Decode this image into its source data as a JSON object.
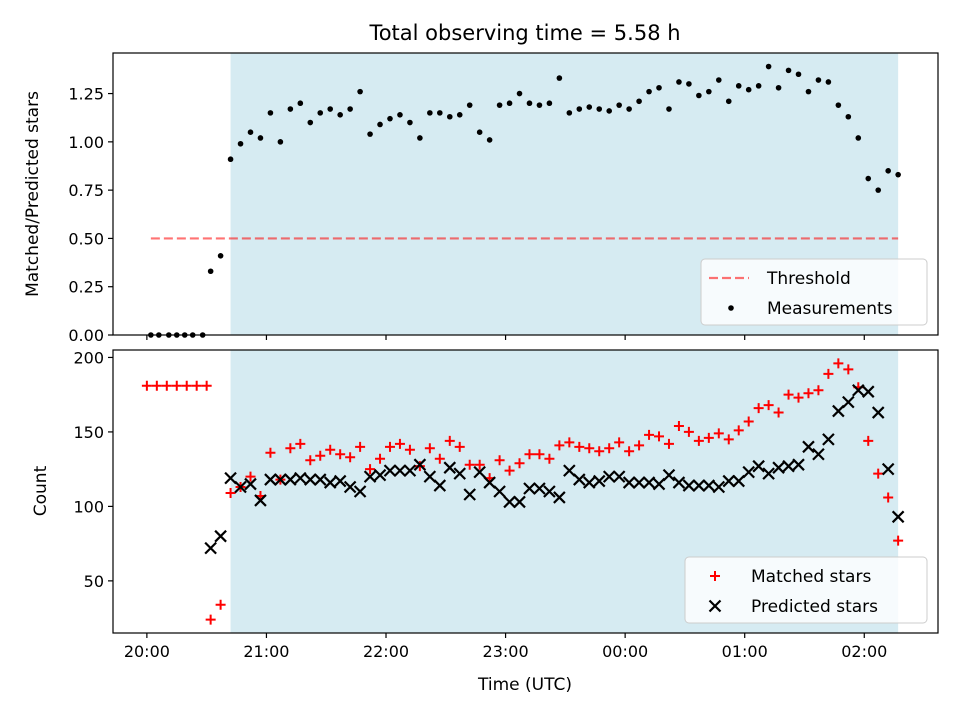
{
  "title": "Total observing time = 5.58 h",
  "colors": {
    "shade": "#add8e6",
    "threshold": "#ff0000",
    "measurements": "#000000",
    "matched": "#ff0000",
    "predicted": "#000000"
  },
  "chart_data": [
    {
      "type": "scatter",
      "title": "Total observing time = 5.58 h",
      "ylabel": "Matched/Predicted stars",
      "xlabel": "",
      "xlim": [
        "19:43",
        "02:37"
      ],
      "ylim": [
        0,
        1.46
      ],
      "x_ticks": [
        "20:00",
        "21:00",
        "22:00",
        "23:00",
        "00:00",
        "01:00",
        "02:00"
      ],
      "y_ticks": [
        "0.00",
        "0.25",
        "0.50",
        "0.75",
        "1.00",
        "1.25"
      ],
      "y_tick_values": [
        0,
        0.25,
        0.5,
        0.75,
        1.0,
        1.25
      ],
      "shaded_span": [
        "20:42",
        "02:17"
      ],
      "threshold": {
        "name": "Threshold",
        "y": 0.5,
        "x_range": [
          "20:02",
          "02:17"
        ],
        "style": "dashed"
      },
      "legend": [
        "Threshold",
        "Measurements"
      ],
      "legend_position": "lower right",
      "series": [
        {
          "name": "Measurements",
          "marker": "dot",
          "points": [
            [
              "20:02",
              0.0
            ],
            [
              "20:06",
              0.0
            ],
            [
              "20:11",
              0.0
            ],
            [
              "20:15",
              0.0
            ],
            [
              "20:19",
              0.0
            ],
            [
              "20:23",
              0.0
            ],
            [
              "20:28",
              0.0
            ],
            [
              "20:32",
              0.33
            ],
            [
              "20:37",
              0.41
            ],
            [
              "20:42",
              0.91
            ],
            [
              "20:47",
              0.99
            ],
            [
              "20:52",
              1.05
            ],
            [
              "20:57",
              1.02
            ],
            [
              "21:02",
              1.15
            ],
            [
              "21:07",
              1.0
            ],
            [
              "21:12",
              1.17
            ],
            [
              "21:17",
              1.2
            ],
            [
              "21:22",
              1.1
            ],
            [
              "21:27",
              1.15
            ],
            [
              "21:32",
              1.17
            ],
            [
              "21:37",
              1.14
            ],
            [
              "21:42",
              1.17
            ],
            [
              "21:47",
              1.26
            ],
            [
              "21:52",
              1.04
            ],
            [
              "21:57",
              1.09
            ],
            [
              "22:02",
              1.12
            ],
            [
              "22:07",
              1.14
            ],
            [
              "22:12",
              1.1
            ],
            [
              "22:17",
              1.02
            ],
            [
              "22:22",
              1.15
            ],
            [
              "22:27",
              1.15
            ],
            [
              "22:32",
              1.13
            ],
            [
              "22:37",
              1.14
            ],
            [
              "22:42",
              1.19
            ],
            [
              "22:47",
              1.05
            ],
            [
              "22:52",
              1.01
            ],
            [
              "22:57",
              1.19
            ],
            [
              "23:02",
              1.2
            ],
            [
              "23:07",
              1.25
            ],
            [
              "23:12",
              1.2
            ],
            [
              "23:17",
              1.19
            ],
            [
              "23:22",
              1.2
            ],
            [
              "23:27",
              1.33
            ],
            [
              "23:32",
              1.15
            ],
            [
              "23:37",
              1.17
            ],
            [
              "23:42",
              1.18
            ],
            [
              "23:47",
              1.17
            ],
            [
              "23:52",
              1.16
            ],
            [
              "23:57",
              1.19
            ],
            [
              "00:02",
              1.17
            ],
            [
              "00:07",
              1.21
            ],
            [
              "00:12",
              1.26
            ],
            [
              "00:17",
              1.28
            ],
            [
              "00:22",
              1.17
            ],
            [
              "00:27",
              1.31
            ],
            [
              "00:32",
              1.3
            ],
            [
              "00:37",
              1.24
            ],
            [
              "00:42",
              1.26
            ],
            [
              "00:47",
              1.32
            ],
            [
              "00:52",
              1.21
            ],
            [
              "00:57",
              1.29
            ],
            [
              "01:02",
              1.27
            ],
            [
              "01:07",
              1.29
            ],
            [
              "01:12",
              1.39
            ],
            [
              "01:17",
              1.28
            ],
            [
              "01:22",
              1.37
            ],
            [
              "01:27",
              1.35
            ],
            [
              "01:32",
              1.26
            ],
            [
              "01:37",
              1.32
            ],
            [
              "01:42",
              1.31
            ],
            [
              "01:47",
              1.19
            ],
            [
              "01:52",
              1.13
            ],
            [
              "01:57",
              1.02
            ],
            [
              "02:02",
              0.81
            ],
            [
              "02:07",
              0.75
            ],
            [
              "02:12",
              0.85
            ],
            [
              "02:17",
              0.83
            ]
          ]
        }
      ]
    },
    {
      "type": "scatter",
      "title": "",
      "xlabel": "Time (UTC)",
      "ylabel": "Count",
      "xlim": [
        "19:43",
        "02:37"
      ],
      "ylim": [
        15,
        205
      ],
      "x_ticks": [
        "20:00",
        "21:00",
        "22:00",
        "23:00",
        "00:00",
        "01:00",
        "02:00"
      ],
      "y_ticks": [
        "50",
        "100",
        "150",
        "200"
      ],
      "y_tick_values": [
        50,
        100,
        150,
        200
      ],
      "shaded_span": [
        "20:42",
        "02:17"
      ],
      "legend": [
        "Matched stars",
        "Predicted stars"
      ],
      "legend_position": "lower right",
      "series": [
        {
          "name": "Matched stars",
          "marker": "plus",
          "points": [
            [
              "20:00",
              181
            ],
            [
              "20:05",
              181
            ],
            [
              "20:10",
              181
            ],
            [
              "20:15",
              181
            ],
            [
              "20:20",
              181
            ],
            [
              "20:25",
              181
            ],
            [
              "20:30",
              181
            ],
            [
              "20:32",
              24
            ],
            [
              "20:37",
              34
            ],
            [
              "20:42",
              109
            ],
            [
              "20:47",
              113
            ],
            [
              "20:52",
              120
            ],
            [
              "20:57",
              107
            ],
            [
              "21:02",
              136
            ],
            [
              "21:07",
              118
            ],
            [
              "21:12",
              139
            ],
            [
              "21:17",
              142
            ],
            [
              "21:22",
              131
            ],
            [
              "21:27",
              134
            ],
            [
              "21:32",
              138
            ],
            [
              "21:37",
              135
            ],
            [
              "21:42",
              133
            ],
            [
              "21:47",
              140
            ],
            [
              "21:52",
              125
            ],
            [
              "21:57",
              132
            ],
            [
              "22:02",
              140
            ],
            [
              "22:07",
              142
            ],
            [
              "22:12",
              138
            ],
            [
              "22:17",
              127
            ],
            [
              "22:22",
              139
            ],
            [
              "22:27",
              132
            ],
            [
              "22:32",
              144
            ],
            [
              "22:37",
              140
            ],
            [
              "22:42",
              128
            ],
            [
              "22:47",
              128
            ],
            [
              "22:52",
              119
            ],
            [
              "22:57",
              131
            ],
            [
              "23:02",
              124
            ],
            [
              "23:07",
              129
            ],
            [
              "23:12",
              135
            ],
            [
              "23:17",
              135
            ],
            [
              "23:22",
              132
            ],
            [
              "23:27",
              141
            ],
            [
              "23:32",
              143
            ],
            [
              "23:37",
              140
            ],
            [
              "23:42",
              139
            ],
            [
              "23:47",
              137
            ],
            [
              "23:52",
              139
            ],
            [
              "23:57",
              143
            ],
            [
              "00:02",
              137
            ],
            [
              "00:07",
              141
            ],
            [
              "00:12",
              148
            ],
            [
              "00:17",
              147
            ],
            [
              "00:22",
              142
            ],
            [
              "00:27",
              154
            ],
            [
              "00:32",
              150
            ],
            [
              "00:37",
              144
            ],
            [
              "00:42",
              146
            ],
            [
              "00:47",
              149
            ],
            [
              "00:52",
              145
            ],
            [
              "00:57",
              151
            ],
            [
              "01:02",
              157
            ],
            [
              "01:07",
              166
            ],
            [
              "01:12",
              168
            ],
            [
              "01:17",
              163
            ],
            [
              "01:22",
              175
            ],
            [
              "01:27",
              173
            ],
            [
              "01:32",
              176
            ],
            [
              "01:37",
              178
            ],
            [
              "01:42",
              189
            ],
            [
              "01:47",
              196
            ],
            [
              "01:52",
              192
            ],
            [
              "01:57",
              180
            ],
            [
              "02:02",
              144
            ],
            [
              "02:07",
              122
            ],
            [
              "02:12",
              106
            ],
            [
              "02:17",
              77
            ]
          ]
        },
        {
          "name": "Predicted stars",
          "marker": "x",
          "points": [
            [
              "20:32",
              72
            ],
            [
              "20:37",
              80
            ],
            [
              "20:42",
              119
            ],
            [
              "20:47",
              113
            ],
            [
              "20:52",
              115
            ],
            [
              "20:57",
              104
            ],
            [
              "21:02",
              118
            ],
            [
              "21:07",
              118
            ],
            [
              "21:12",
              118
            ],
            [
              "21:17",
              119
            ],
            [
              "21:22",
              118
            ],
            [
              "21:27",
              118
            ],
            [
              "21:32",
              116
            ],
            [
              "21:37",
              117
            ],
            [
              "21:42",
              113
            ],
            [
              "21:47",
              110
            ],
            [
              "21:52",
              120
            ],
            [
              "21:57",
              121
            ],
            [
              "22:02",
              124
            ],
            [
              "22:07",
              124
            ],
            [
              "22:12",
              124
            ],
            [
              "22:17",
              128
            ],
            [
              "22:22",
              120
            ],
            [
              "22:27",
              114
            ],
            [
              "22:32",
              126
            ],
            [
              "22:37",
              122
            ],
            [
              "22:42",
              108
            ],
            [
              "22:47",
              123
            ],
            [
              "22:52",
              116
            ],
            [
              "22:57",
              110
            ],
            [
              "23:02",
              103
            ],
            [
              "23:07",
              103
            ],
            [
              "23:12",
              112
            ],
            [
              "23:17",
              112
            ],
            [
              "23:22",
              110
            ],
            [
              "23:27",
              106
            ],
            [
              "23:32",
              124
            ],
            [
              "23:37",
              118
            ],
            [
              "23:42",
              116
            ],
            [
              "23:47",
              117
            ],
            [
              "23:52",
              120
            ],
            [
              "23:57",
              120
            ],
            [
              "00:02",
              116
            ],
            [
              "00:07",
              116
            ],
            [
              "00:12",
              116
            ],
            [
              "00:17",
              115
            ],
            [
              "00:22",
              121
            ],
            [
              "00:27",
              116
            ],
            [
              "00:32",
              114
            ],
            [
              "00:37",
              114
            ],
            [
              "00:42",
              114
            ],
            [
              "00:47",
              113
            ],
            [
              "00:52",
              117
            ],
            [
              "00:57",
              117
            ],
            [
              "01:02",
              123
            ],
            [
              "01:07",
              127
            ],
            [
              "01:12",
              122
            ],
            [
              "01:17",
              126
            ],
            [
              "01:22",
              127
            ],
            [
              "01:27",
              128
            ],
            [
              "01:32",
              140
            ],
            [
              "01:37",
              135
            ],
            [
              "01:42",
              145
            ],
            [
              "01:47",
              164
            ],
            [
              "01:52",
              170
            ],
            [
              "01:57",
              178
            ],
            [
              "02:02",
              177
            ],
            [
              "02:07",
              163
            ],
            [
              "02:12",
              125
            ],
            [
              "02:17",
              93
            ]
          ]
        }
      ]
    }
  ]
}
